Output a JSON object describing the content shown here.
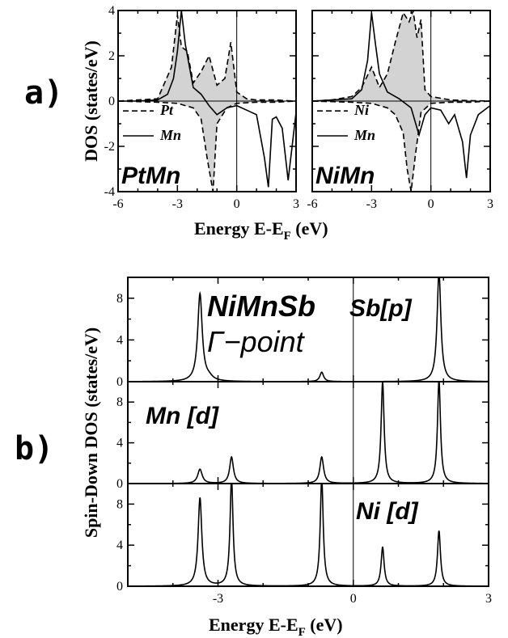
{
  "labels": {
    "a": "a)",
    "b": "b)"
  },
  "chart_data": [
    {
      "id": "a-left",
      "type": "line",
      "title": "PtMn",
      "xlabel": "Energy E-E_F (eV)",
      "ylabel": "DOS (states/eV)",
      "xlim": [
        -6,
        3
      ],
      "ylim": [
        -4,
        4
      ],
      "xticks": [
        "-6",
        "-3",
        "0",
        "3"
      ],
      "yticks": [
        "-4",
        "-2",
        "0",
        "2",
        "4"
      ],
      "series": [
        {
          "name": "Pt",
          "style": "dashed",
          "x": [
            -6,
            -5,
            -4,
            -3.3,
            -3,
            -2.8,
            -2.5,
            -2.2,
            -1.8,
            -1.4,
            -1.0,
            -0.6,
            -0.3,
            0,
            0.5,
            1,
            1.5,
            2,
            2.5,
            3
          ],
          "y": [
            0,
            0.05,
            0.1,
            1.5,
            3.8,
            2.4,
            2.2,
            0.8,
            1.3,
            2.0,
            0.7,
            1.0,
            2.6,
            0.4,
            0.1,
            0.05,
            0.05,
            0.05,
            0.02,
            0
          ]
        },
        {
          "name": "Mn",
          "style": "solid",
          "x": [
            -6,
            -5,
            -4,
            -3.5,
            -3.2,
            -3.0,
            -2.8,
            -2.6,
            -2.2,
            -1.8,
            -1.4,
            -1.0,
            -0.5,
            0,
            0.5,
            1.0,
            1.4,
            1.6,
            1.8,
            2.0,
            2.3,
            2.6,
            3
          ],
          "y": [
            0,
            0,
            0.05,
            0.3,
            1.0,
            2.2,
            4.0,
            2.5,
            0.6,
            0.3,
            -0.2,
            -0.6,
            -0.3,
            -0.2,
            -0.4,
            -0.6,
            -2.5,
            -3.8,
            -0.8,
            -0.7,
            -1.2,
            -3.5,
            -0.5
          ]
        },
        {
          "name": "Pt-down",
          "style": "dashed",
          "x": [
            -6,
            -4,
            -3,
            -2.2,
            -1.8,
            -1.5,
            -1.2,
            -1.0,
            -0.5,
            0,
            1,
            2,
            3
          ],
          "y": [
            0,
            -0.05,
            -0.1,
            -0.3,
            -0.8,
            -2.5,
            -4.0,
            -1.0,
            -0.3,
            -0.1,
            -0.05,
            -0.05,
            0
          ]
        }
      ],
      "legend": [
        "Pt",
        "Mn"
      ],
      "legend_position": "lower-left"
    },
    {
      "id": "a-right",
      "type": "line",
      "title": "NiMn",
      "xlabel": "Energy E-E_F (eV)",
      "xlim": [
        -6,
        3
      ],
      "ylim": [
        -4,
        4
      ],
      "xticks": [
        "-6",
        "-3",
        "0",
        "3"
      ],
      "series": [
        {
          "name": "Ni",
          "style": "dashed",
          "x": [
            -6,
            -5,
            -4,
            -3.5,
            -3.0,
            -2.6,
            -2.2,
            -1.8,
            -1.4,
            -1.1,
            -0.9,
            -0.7,
            -0.5,
            -0.3,
            0,
            1,
            2,
            3
          ],
          "y": [
            0,
            0.05,
            0.2,
            0.6,
            1.5,
            0.6,
            1.2,
            2.6,
            3.9,
            3.5,
            4.0,
            2.8,
            3.6,
            0.5,
            0.2,
            0.05,
            0.02,
            0
          ]
        },
        {
          "name": "Mn",
          "style": "solid",
          "x": [
            -6,
            -5,
            -4,
            -3.5,
            -3.2,
            -3.0,
            -2.8,
            -2.6,
            -2.2,
            -1.6,
            -1.0,
            -0.6,
            -0.3,
            0,
            0.5,
            0.9,
            1.2,
            1.6,
            1.8,
            2.0,
            2.4,
            3
          ],
          "y": [
            0,
            0.05,
            0.1,
            0.5,
            1.8,
            3.9,
            2.5,
            1.2,
            0.4,
            0.1,
            -0.3,
            -1.5,
            -0.6,
            -0.3,
            -0.4,
            -1.0,
            -0.6,
            -1.8,
            -3.4,
            -1.5,
            -0.6,
            -0.2
          ]
        },
        {
          "name": "Ni-down",
          "style": "dashed",
          "x": [
            -6,
            -4,
            -3,
            -2.2,
            -1.8,
            -1.4,
            -1.2,
            -1.0,
            -0.8,
            -0.5,
            0,
            1,
            2,
            3
          ],
          "y": [
            0,
            -0.05,
            -0.1,
            -0.3,
            -0.6,
            -1.4,
            -3.0,
            -4.0,
            -2.5,
            -0.5,
            -0.1,
            -0.05,
            -0.05,
            0
          ]
        }
      ],
      "legend": [
        "Ni",
        "Mn"
      ],
      "legend_position": "lower-left"
    },
    {
      "id": "b-sb",
      "type": "line",
      "label": "Sb[p]",
      "xlim": [
        -5,
        3
      ],
      "ylim": [
        0,
        10
      ],
      "yticks": [
        "0",
        "4",
        "8"
      ],
      "peaks": [
        {
          "x": -3.4,
          "h": 8.4,
          "w": 0.06
        },
        {
          "x": -3.2,
          "h": 0.3,
          "w": 0.1
        },
        {
          "x": -0.7,
          "h": 0.9,
          "w": 0.05
        },
        {
          "x": 1.9,
          "h": 10.5,
          "w": 0.05
        }
      ],
      "annotation_1": "NiMnSb",
      "annotation_2": "Γ−point"
    },
    {
      "id": "b-mn",
      "type": "line",
      "label": "Mn [d]",
      "xlim": [
        -5,
        3
      ],
      "ylim": [
        0,
        10
      ],
      "yticks": [
        "0",
        "4",
        "8"
      ],
      "peaks": [
        {
          "x": -3.4,
          "h": 1.4,
          "w": 0.06
        },
        {
          "x": -2.7,
          "h": 2.6,
          "w": 0.05
        },
        {
          "x": -0.7,
          "h": 2.6,
          "w": 0.05
        },
        {
          "x": 0.65,
          "h": 10.0,
          "w": 0.04
        },
        {
          "x": 1.9,
          "h": 10.2,
          "w": 0.04
        }
      ]
    },
    {
      "id": "b-ni",
      "type": "line",
      "label": "Ni [d]",
      "xlim": [
        -5,
        3
      ],
      "ylim": [
        0,
        10
      ],
      "xticks": [
        "-3",
        "0",
        "3"
      ],
      "yticks": [
        "0",
        "4",
        "8"
      ],
      "ylabel": "Spin-Down DOS (states/eV)",
      "xlabel": "Energy E-E_F (eV)",
      "peaks": [
        {
          "x": -3.4,
          "h": 8.6,
          "w": 0.05
        },
        {
          "x": -2.7,
          "h": 10.5,
          "w": 0.04
        },
        {
          "x": -0.7,
          "h": 10.5,
          "w": 0.04
        },
        {
          "x": 0.65,
          "h": 3.8,
          "w": 0.04
        },
        {
          "x": 1.9,
          "h": 5.4,
          "w": 0.04
        }
      ]
    }
  ]
}
